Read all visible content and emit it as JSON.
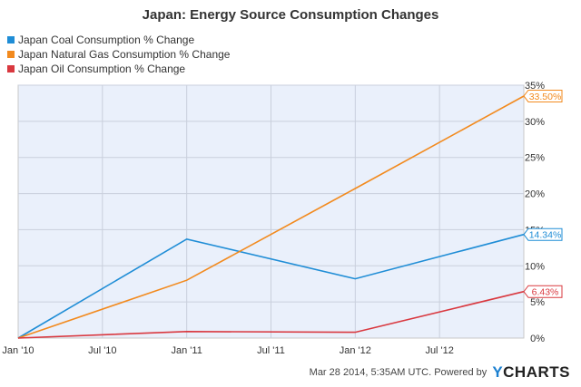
{
  "chart_data": {
    "type": "line",
    "title": "Japan: Energy Source Consumption Changes",
    "x_ticks": [
      "Jan '10",
      "Jul '10",
      "Jan '11",
      "Jul '11",
      "Jan '12",
      "Jul '12"
    ],
    "y_ticks": [
      "0%",
      "5%",
      "10%",
      "15%",
      "20%",
      "25%",
      "30%",
      "35%"
    ],
    "ylim": [
      0,
      35
    ],
    "x_range": [
      "2010-01",
      "2013-01"
    ],
    "grid": true,
    "legend_position": "top-left",
    "series": [
      {
        "name": "Japan Coal Consumption % Change",
        "color": "#1f8dd6",
        "x": [
          "2010-01",
          "2011-01",
          "2012-01",
          "2013-01"
        ],
        "values": [
          0,
          13.7,
          8.2,
          14.34
        ],
        "end_label": "14.34%"
      },
      {
        "name": "Japan Natural Gas Consumption % Change",
        "color": "#f28a1e",
        "x": [
          "2010-01",
          "2011-01",
          "2012-01",
          "2013-01"
        ],
        "values": [
          0,
          8.0,
          20.7,
          33.5
        ],
        "end_label": "33.50%"
      },
      {
        "name": "Japan Oil Consumption % Change",
        "color": "#d9383f",
        "x": [
          "2010-01",
          "2011-01",
          "2012-01",
          "2013-01"
        ],
        "values": [
          0,
          0.9,
          0.8,
          6.43
        ],
        "end_label": "6.43%"
      }
    ]
  },
  "footer": {
    "timestamp": "Mar 28 2014, 5:35AM UTC. Powered by",
    "logo_y": "Y",
    "logo_rest": "CHARTS"
  }
}
